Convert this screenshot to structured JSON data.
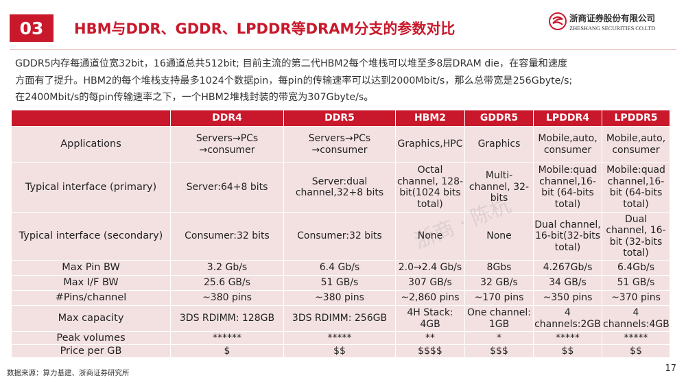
{
  "header": {
    "section_number": "03",
    "title": "HBM与DDR、GDDR、LPDDR等DRAM分支的参数对比",
    "logo_cn": "浙商证券股份有限公司",
    "logo_en": "ZHESHANG SECURITIES CO.LTD",
    "brand_color": "#c9182b"
  },
  "intro": {
    "lines": [
      "GDDR5内存每通道位宽32bit，16通道总共512bit; 目前主流的第二代HBM2每个堆栈可以堆至多8层DRAM die，在容量和速度",
      "方面有了提升。HBM2的每个堆栈支持最多1024个数据pin，每pin的传输速率可以达到2000Mbit/s，那么总带宽是256Gbyte/s;",
      "在2400Mbit/s的每pin传输速率之下，一个HBM2堆栈封装的带宽为307Gbyte/s。"
    ]
  },
  "table": {
    "columns": [
      "",
      "DDR4",
      "DDR5",
      "HBM2",
      "GDDR5",
      "LPDDR4",
      "LPDDR5"
    ],
    "rows": [
      {
        "label": "Applications",
        "cells": [
          "Servers→PCs →consumer",
          "Servers→PCs →consumer",
          "Graphics,HPC",
          "Graphics",
          "Mobile,auto, consumer",
          "Mobile,auto, consumer"
        ]
      },
      {
        "label": "Typical interface (primary)",
        "cells": [
          "Server:64+8 bits",
          "Server:dual channel,32+8 bits",
          "Octal channel, 128-bit(1024 bits total)",
          "Multi-channel, 32-bits",
          "Mobile:quad channel,16-bit (64-bits total)",
          "Mobile:quad channel,16-bit (64-bits total)"
        ]
      },
      {
        "label": "Typical interface (secondary)",
        "cells": [
          "Consumer:32 bits",
          "Consumer:32 bits",
          "None",
          "None",
          "Dual channel, 16-bit(32-bits total)",
          "Dual channel, 16-bit (32-bits total)"
        ]
      },
      {
        "label": "Max Pin BW",
        "cells": [
          "3.2 Gb/s",
          "6.4 Gb/s",
          "2.0→2.4 Gb/s",
          "8Gbs",
          "4.267Gb/s",
          "6.4Gb/s"
        ]
      },
      {
        "label": "Max I/F BW",
        "cells": [
          "25.6 GB/s",
          "51 GB/s",
          "307 GB/s",
          "32 GB/s",
          "34 GB/s",
          "51 GB/s"
        ]
      },
      {
        "label": "#Pins/channel",
        "cells": [
          "~380 pins",
          "~380 pins",
          "~2,860 pins",
          "~170 pins",
          "~350 pins",
          "~370 pins"
        ]
      },
      {
        "label": "Max capacity",
        "cells": [
          "3DS RDIMM: 128GB",
          "3DS RDIMM: 256GB",
          "4H Stack: 4GB",
          "One channel: 1GB",
          "4 channels:2GB",
          "4 channels:4GB"
        ]
      },
      {
        "label": "Peak volumes",
        "cells": [
          "******",
          "*****",
          "**",
          "*",
          "*****",
          "*****"
        ]
      },
      {
        "label": "Price per GB",
        "cells": [
          "$",
          "$$",
          "$$$$",
          "$$$",
          "$$",
          "$$"
        ]
      }
    ]
  },
  "footer": {
    "source": "数据来源：算力基建、浙商证券研究所",
    "page_number": "17"
  },
  "watermark": "浙商 · 陈杭"
}
